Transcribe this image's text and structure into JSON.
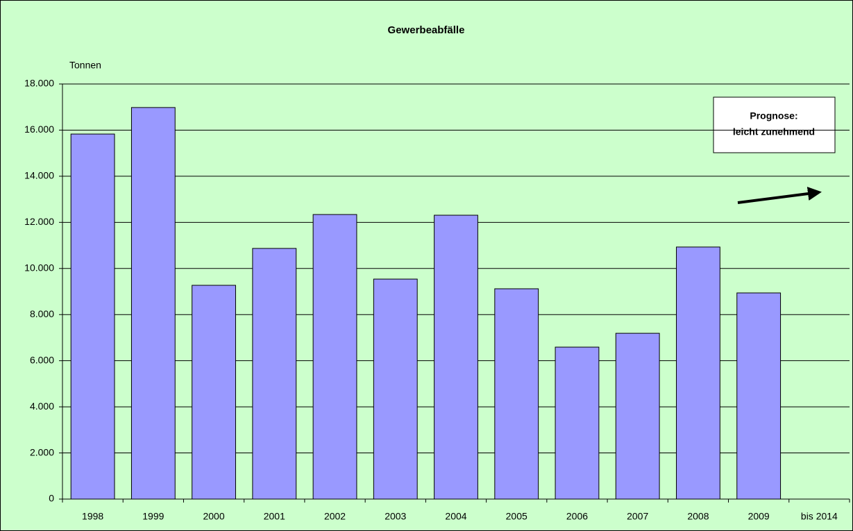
{
  "chart_data": {
    "type": "bar",
    "title": "Gewerbeabfälle",
    "y_label": "Tonnen",
    "annotation": [
      "Prognose:",
      "leicht zunehmend"
    ],
    "categories": [
      "1998",
      "1999",
      "2000",
      "2001",
      "2002",
      "2003",
      "2004",
      "2005",
      "2006",
      "2007",
      "2008",
      "2009",
      "bis 2014"
    ],
    "values": [
      15830,
      16980,
      9270,
      10870,
      12340,
      9540,
      12310,
      9120,
      6590,
      7190,
      10930,
      8940,
      null
    ],
    "color": "#9999ff",
    "ylim": [
      0,
      18000
    ],
    "yticks": [
      0,
      {
        "value": 2000,
        "label": "2.000"
      },
      {
        "value": 4000,
        "label": "4.000"
      },
      {
        "value": 6000,
        "label": "6.000"
      },
      {
        "value": 8000,
        "label": "8.000"
      },
      {
        "value": 10000,
        "label": "10.000"
      },
      {
        "value": 12000,
        "label": "12.000"
      },
      {
        "value": 14000,
        "label": "14.000"
      },
      {
        "value": 16000,
        "label": "16.000"
      },
      {
        "value": 18000,
        "label": "18.000"
      }
    ],
    "grid": true
  }
}
